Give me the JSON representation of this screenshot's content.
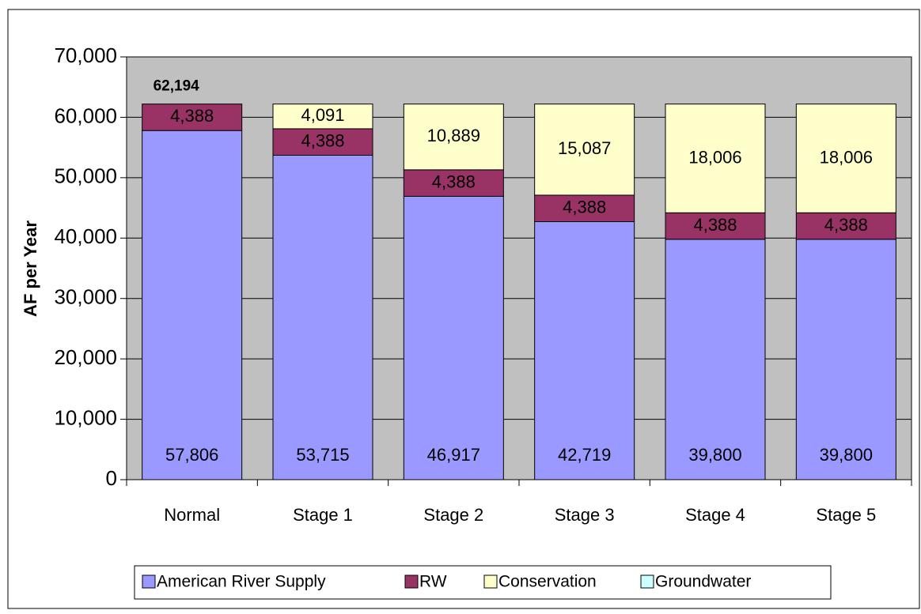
{
  "chart_data": {
    "type": "stacked_bar",
    "y_label": "AF per Year",
    "annotation": "62,194",
    "categories": [
      "Normal",
      "Stage 1",
      "Stage 2",
      "Stage 3",
      "Stage 4",
      "Stage 5"
    ],
    "series": [
      {
        "name": "American River Supply",
        "color": "#9999ff",
        "values": [
          57806,
          53715,
          46917,
          42719,
          39800,
          39800
        ],
        "value_labels": [
          "57,806",
          "53,715",
          "46,917",
          "42,719",
          "39,800",
          "39,800"
        ]
      },
      {
        "name": "RW",
        "color": "#993366",
        "values": [
          4388,
          4388,
          4388,
          4388,
          4388,
          4388
        ],
        "value_labels": [
          "4,388",
          "4,388",
          "4,388",
          "4,388",
          "4,388",
          "4,388"
        ]
      },
      {
        "name": "Conservation",
        "color": "#ffffcc",
        "values": [
          0,
          4091,
          10889,
          15087,
          18006,
          18006
        ],
        "value_labels": [
          null,
          "4,091",
          "10,889",
          "15,087",
          "18,006",
          "18,006"
        ]
      },
      {
        "name": "Groundwater",
        "color": "#ccffff",
        "values": [
          0,
          0,
          0,
          0,
          0,
          0
        ]
      }
    ],
    "ylim": [
      0,
      70000
    ],
    "yticks": [
      0,
      {
        "value": 10000,
        "label": "10,000"
      },
      {
        "value": 20000,
        "label": "20,000"
      },
      {
        "value": 30000,
        "label": "30,000"
      },
      {
        "value": 40000,
        "label": "40,000"
      },
      {
        "value": 50000,
        "label": "50,000"
      },
      {
        "value": 60000,
        "label": "60,000"
      },
      {
        "value": 70000,
        "label": "70,000"
      }
    ],
    "grid": true,
    "legend": "bottom",
    "plot_background": "#c0c0c0"
  }
}
